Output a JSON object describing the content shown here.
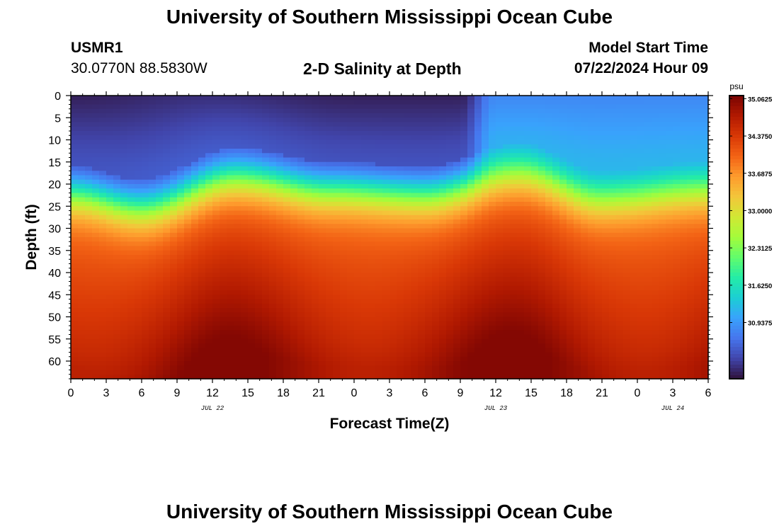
{
  "header": {
    "title": "University of Southern Mississippi Ocean Cube",
    "station_id": "USMR1",
    "coordinates": "30.0770N  88.5830W",
    "chart_heading": "2-D Salinity at Depth",
    "model_start_label": "Model Start Time",
    "model_start_value": "07/22/2024 Hour 09"
  },
  "footer": {
    "title": "University of Southern Mississippi Ocean Cube"
  },
  "chart_data": {
    "type": "heatmap",
    "title": "2-D Salinity at Depth",
    "xlabel": "Forecast Time(Z)",
    "ylabel": "Depth (ft)",
    "x_tick_labels": [
      "0",
      "3",
      "6",
      "9",
      "12",
      "15",
      "18",
      "21",
      "0",
      "3",
      "6",
      "9",
      "12",
      "15",
      "18",
      "21",
      "0",
      "3",
      "6"
    ],
    "date_labels": [
      {
        "label": "JUL 22",
        "at_tick": 4
      },
      {
        "label": "JUL 23",
        "at_tick": 12
      },
      {
        "label": "JUL 24",
        "at_tick": 17
      }
    ],
    "y_tick_labels": [
      "0",
      "5",
      "10",
      "15",
      "20",
      "25",
      "30",
      "35",
      "40",
      "45",
      "50",
      "55",
      "60"
    ],
    "y_range_ft": [
      0,
      64
    ],
    "x_range_hours_from_model_start": [
      -9,
      45
    ],
    "colorbar": {
      "unit": "psu",
      "tick_labels": [
        "35.0625",
        "34.3750",
        "33.6875",
        "33.0000",
        "32.3125",
        "31.6250",
        "30.9375"
      ],
      "range": [
        29.9,
        35.12
      ]
    },
    "colormap": [
      "#30123b",
      "#4145ab",
      "#4675ed",
      "#39a2fc",
      "#1bcfd4",
      "#24eca6",
      "#61fc6c",
      "#a4fc3b",
      "#d1e834",
      "#f3c63a",
      "#fe9b2d",
      "#f36315",
      "#d93806",
      "#b11901",
      "#7a0403"
    ],
    "profile": {
      "description_note": "",
      "surface_low_salinity": [
        {
          "hour": 0,
          "value": 30.0
        },
        {
          "hour": 12,
          "value": 30.1
        },
        {
          "hour": 24,
          "value": 30.0
        },
        {
          "hour": 33,
          "value": 30.0
        },
        {
          "hour": 36,
          "value": 30.8
        },
        {
          "hour": 54,
          "value": 30.8
        }
      ],
      "halocline_depth_ft": [
        {
          "hour": 0,
          "depth": 22
        },
        {
          "hour": 6,
          "depth": 25
        },
        {
          "hour": 14,
          "depth": 18
        },
        {
          "hour": 22,
          "depth": 21
        },
        {
          "hour": 30,
          "depth": 22
        },
        {
          "hour": 38,
          "depth": 17
        },
        {
          "hour": 45,
          "depth": 23
        },
        {
          "hour": 54,
          "depth": 21
        }
      ],
      "bottom_max_salinity": 35.05
    }
  }
}
